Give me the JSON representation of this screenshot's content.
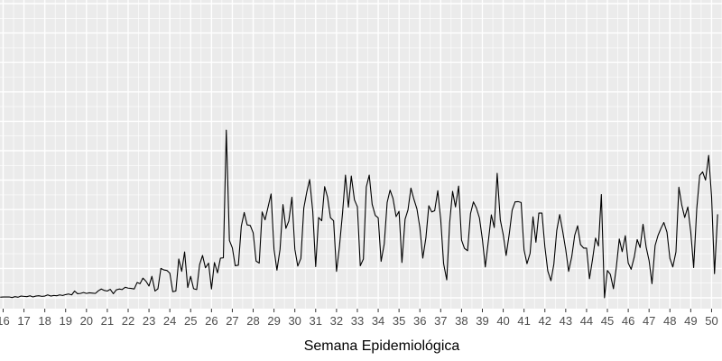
{
  "chart_data": {
    "type": "line",
    "title": "",
    "xlabel": "Semana Epidemiológica",
    "ylabel": "",
    "x_unit": "semana epidemiológica",
    "grid": true,
    "legend": "none",
    "xlim": [
      15.85,
      50.5
    ],
    "ylim": [
      0,
      100
    ],
    "x_ticks": [
      16,
      17,
      18,
      19,
      20,
      21,
      22,
      23,
      24,
      25,
      26,
      27,
      28,
      29,
      30,
      31,
      32,
      33,
      34,
      35,
      36,
      37,
      38,
      39,
      40,
      41,
      42,
      43,
      44,
      45,
      46,
      47,
      48,
      49,
      50
    ],
    "x_tick_labels": [
      "16",
      "17",
      "18",
      "19",
      "20",
      "21",
      "22",
      "23",
      "24",
      "25",
      "26",
      "27",
      "28",
      "29",
      "30",
      "31",
      "32",
      "33",
      "34",
      "35",
      "36",
      "37",
      "38",
      "39",
      "40",
      "41",
      "42",
      "43",
      "44",
      "45",
      "46",
      "47",
      "48",
      "49",
      "50"
    ],
    "y_gridlines": [
      0,
      10,
      20,
      30,
      40,
      50,
      60,
      70,
      80,
      90,
      100
    ],
    "colors": {
      "panel_bg": "#ebebeb",
      "grid": "#ffffff",
      "line": "#000000"
    },
    "series": [
      {
        "name": "",
        "values": [
          [
            15.86,
            0.2
          ],
          [
            16.0,
            0.3
          ],
          [
            16.14,
            0.3
          ],
          [
            16.29,
            0.3
          ],
          [
            16.43,
            0.1
          ],
          [
            16.57,
            0.4
          ],
          [
            16.71,
            0.2
          ],
          [
            16.86,
            0.6
          ],
          [
            17.0,
            0.5
          ],
          [
            17.14,
            0.4
          ],
          [
            17.29,
            0.7
          ],
          [
            17.43,
            0.3
          ],
          [
            17.57,
            0.6
          ],
          [
            17.71,
            0.7
          ],
          [
            17.86,
            0.5
          ],
          [
            18.0,
            0.6
          ],
          [
            18.14,
            1.0
          ],
          [
            18.29,
            0.6
          ],
          [
            18.43,
            0.8
          ],
          [
            18.57,
            0.7
          ],
          [
            18.71,
            1.0
          ],
          [
            18.86,
            0.8
          ],
          [
            19.0,
            1.1
          ],
          [
            19.14,
            1.3
          ],
          [
            19.29,
            1.0
          ],
          [
            19.43,
            2.3
          ],
          [
            19.57,
            1.4
          ],
          [
            19.71,
            1.5
          ],
          [
            19.86,
            1.8
          ],
          [
            20.0,
            1.5
          ],
          [
            20.14,
            1.7
          ],
          [
            20.29,
            1.6
          ],
          [
            20.43,
            1.5
          ],
          [
            20.57,
            2.4
          ],
          [
            20.71,
            3.0
          ],
          [
            20.86,
            2.5
          ],
          [
            21.0,
            2.3
          ],
          [
            21.14,
            2.9
          ],
          [
            21.29,
            1.4
          ],
          [
            21.43,
            2.7
          ],
          [
            21.57,
            3.0
          ],
          [
            21.71,
            2.8
          ],
          [
            21.86,
            3.6
          ],
          [
            22.0,
            3.3
          ],
          [
            22.14,
            3.2
          ],
          [
            22.29,
            3.0
          ],
          [
            22.43,
            5.2
          ],
          [
            22.57,
            4.8
          ],
          [
            22.71,
            6.7
          ],
          [
            22.86,
            5.6
          ],
          [
            23.0,
            4.0
          ],
          [
            23.14,
            7.3
          ],
          [
            23.29,
            2.3
          ],
          [
            23.43,
            3.1
          ],
          [
            23.57,
            10.0
          ],
          [
            23.71,
            9.5
          ],
          [
            23.86,
            9.3
          ],
          [
            24.0,
            8.4
          ],
          [
            24.14,
            2.1
          ],
          [
            24.29,
            2.3
          ],
          [
            24.43,
            13.2
          ],
          [
            24.57,
            9.0
          ],
          [
            24.71,
            15.6
          ],
          [
            24.86,
            3.5
          ],
          [
            25.0,
            7.3
          ],
          [
            25.14,
            3.1
          ],
          [
            25.29,
            2.8
          ],
          [
            25.43,
            11.3
          ],
          [
            25.57,
            14.4
          ],
          [
            25.71,
            10.2
          ],
          [
            25.86,
            11.8
          ],
          [
            26.0,
            3.0
          ],
          [
            26.14,
            12.0
          ],
          [
            26.29,
            8.5
          ],
          [
            26.43,
            13.5
          ],
          [
            26.57,
            13.6
          ],
          [
            26.71,
            57.0
          ],
          [
            26.86,
            19.5
          ],
          [
            27.0,
            17.0
          ],
          [
            27.14,
            10.9
          ],
          [
            27.29,
            11.1
          ],
          [
            27.43,
            24.3
          ],
          [
            27.57,
            29.0
          ],
          [
            27.71,
            24.8
          ],
          [
            27.86,
            24.6
          ],
          [
            28.0,
            22.1
          ],
          [
            28.14,
            12.5
          ],
          [
            28.29,
            11.8
          ],
          [
            28.43,
            29.2
          ],
          [
            28.57,
            26.5
          ],
          [
            28.71,
            30.7
          ],
          [
            28.86,
            35.3
          ],
          [
            29.0,
            16.5
          ],
          [
            29.14,
            9.4
          ],
          [
            29.29,
            16.5
          ],
          [
            29.43,
            31.7
          ],
          [
            29.57,
            23.6
          ],
          [
            29.71,
            26.1
          ],
          [
            29.86,
            34.2
          ],
          [
            30.0,
            16.5
          ],
          [
            30.14,
            10.8
          ],
          [
            30.29,
            13.4
          ],
          [
            30.43,
            30.5
          ],
          [
            30.57,
            35.9
          ],
          [
            30.71,
            40.2
          ],
          [
            30.86,
            29.4
          ],
          [
            31.0,
            10.6
          ],
          [
            31.14,
            27.3
          ],
          [
            31.29,
            26.2
          ],
          [
            31.43,
            37.8
          ],
          [
            31.57,
            34.2
          ],
          [
            31.71,
            27.2
          ],
          [
            31.86,
            26.2
          ],
          [
            32.0,
            9.0
          ],
          [
            32.14,
            17.4
          ],
          [
            32.29,
            28.9
          ],
          [
            32.43,
            41.7
          ],
          [
            32.57,
            30.8
          ],
          [
            32.71,
            41.4
          ],
          [
            32.86,
            33.3
          ],
          [
            33.0,
            31.0
          ],
          [
            33.14,
            10.9
          ],
          [
            33.29,
            13.2
          ],
          [
            33.43,
            37.7
          ],
          [
            33.57,
            41.7
          ],
          [
            33.71,
            31.8
          ],
          [
            33.86,
            28.0
          ],
          [
            34.0,
            27.2
          ],
          [
            34.14,
            12.4
          ],
          [
            34.29,
            18.3
          ],
          [
            34.43,
            32.4
          ],
          [
            34.57,
            36.6
          ],
          [
            34.71,
            33.8
          ],
          [
            34.86,
            27.6
          ],
          [
            35.0,
            29.4
          ],
          [
            35.14,
            12.0
          ],
          [
            35.29,
            26.7
          ],
          [
            35.43,
            29.9
          ],
          [
            35.57,
            37.3
          ],
          [
            35.71,
            33.6
          ],
          [
            35.86,
            30.2
          ],
          [
            36.0,
            23.9
          ],
          [
            36.14,
            13.5
          ],
          [
            36.29,
            20.4
          ],
          [
            36.43,
            31.3
          ],
          [
            36.57,
            29.2
          ],
          [
            36.71,
            29.6
          ],
          [
            36.86,
            36.4
          ],
          [
            37.0,
            26.7
          ],
          [
            37.14,
            11.6
          ],
          [
            37.29,
            6.1
          ],
          [
            37.43,
            25.5
          ],
          [
            37.57,
            36.2
          ],
          [
            37.71,
            30.9
          ],
          [
            37.86,
            38.0
          ],
          [
            38.0,
            19.6
          ],
          [
            38.14,
            16.8
          ],
          [
            38.29,
            16.0
          ],
          [
            38.43,
            28.6
          ],
          [
            38.57,
            32.6
          ],
          [
            38.71,
            30.6
          ],
          [
            38.86,
            27.1
          ],
          [
            39.0,
            19.9
          ],
          [
            39.14,
            10.5
          ],
          [
            39.29,
            19.5
          ],
          [
            39.43,
            28.2
          ],
          [
            39.57,
            23.9
          ],
          [
            39.71,
            42.3
          ],
          [
            39.86,
            26.5
          ],
          [
            40.0,
            21.5
          ],
          [
            40.14,
            14.4
          ],
          [
            40.29,
            21.7
          ],
          [
            40.43,
            29.8
          ],
          [
            40.57,
            32.6
          ],
          [
            40.71,
            32.7
          ],
          [
            40.86,
            32.4
          ],
          [
            41.0,
            16.3
          ],
          [
            41.14,
            11.6
          ],
          [
            41.29,
            15.1
          ],
          [
            41.43,
            27.5
          ],
          [
            41.57,
            18.9
          ],
          [
            41.71,
            28.8
          ],
          [
            41.86,
            28.8
          ],
          [
            42.0,
            17.3
          ],
          [
            42.14,
            9.1
          ],
          [
            42.29,
            5.8
          ],
          [
            42.43,
            11.4
          ],
          [
            42.57,
            22.9
          ],
          [
            42.71,
            28.3
          ],
          [
            42.86,
            22.4
          ],
          [
            43.0,
            16.4
          ],
          [
            43.14,
            9.0
          ],
          [
            43.29,
            14.0
          ],
          [
            43.43,
            21.2
          ],
          [
            43.57,
            24.5
          ],
          [
            43.71,
            18.1
          ],
          [
            43.86,
            16.9
          ],
          [
            44.0,
            16.9
          ],
          [
            44.14,
            6.5
          ],
          [
            44.29,
            13.2
          ],
          [
            44.43,
            20.3
          ],
          [
            44.57,
            17.6
          ],
          [
            44.71,
            35.1
          ],
          [
            44.86,
            0.0
          ],
          [
            45.0,
            9.3
          ],
          [
            45.14,
            8.0
          ],
          [
            45.29,
            3.1
          ],
          [
            45.43,
            10.5
          ],
          [
            45.57,
            20.0
          ],
          [
            45.71,
            15.7
          ],
          [
            45.86,
            21.1
          ],
          [
            46.0,
            11.8
          ],
          [
            46.14,
            9.7
          ],
          [
            46.29,
            13.9
          ],
          [
            46.43,
            19.8
          ],
          [
            46.57,
            17.1
          ],
          [
            46.71,
            25.0
          ],
          [
            46.86,
            17.2
          ],
          [
            47.0,
            12.7
          ],
          [
            47.14,
            4.8
          ],
          [
            47.29,
            17.8
          ],
          [
            47.43,
            21.2
          ],
          [
            47.57,
            23.6
          ],
          [
            47.71,
            25.6
          ],
          [
            47.86,
            22.3
          ],
          [
            48.0,
            13.4
          ],
          [
            48.14,
            10.5
          ],
          [
            48.29,
            15.6
          ],
          [
            48.43,
            37.6
          ],
          [
            48.57,
            31.5
          ],
          [
            48.71,
            27.3
          ],
          [
            48.86,
            30.9
          ],
          [
            49.0,
            22.4
          ],
          [
            49.14,
            10.3
          ],
          [
            49.29,
            30.4
          ],
          [
            49.43,
            41.6
          ],
          [
            49.57,
            42.8
          ],
          [
            49.71,
            40.0
          ],
          [
            49.86,
            48.4
          ],
          [
            50.0,
            34.4
          ],
          [
            50.14,
            8.2
          ],
          [
            50.29,
            28.4
          ]
        ]
      }
    ]
  }
}
